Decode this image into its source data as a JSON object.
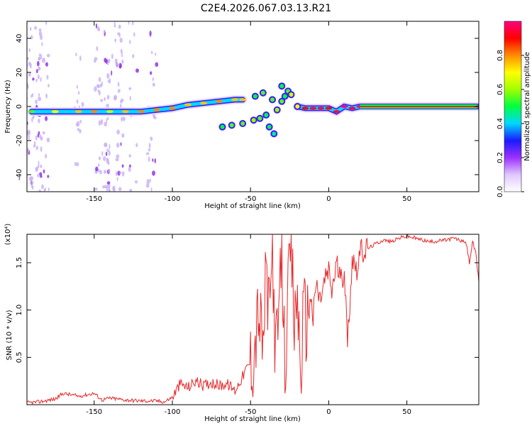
{
  "title": "C2E4.2026.067.03.13.R21",
  "colors": {
    "snr_line": "#e8282a",
    "axis": "#000000",
    "speckle": "#b8a0f0"
  },
  "chart_data": [
    {
      "type": "heatmap",
      "xlabel": "Height of straight line (km)",
      "ylabel": "Frequency (Hz)",
      "xlim": [
        -193,
        96
      ],
      "ylim": [
        -50,
        50
      ],
      "xticks": [
        -150,
        -100,
        -50,
        0,
        50
      ],
      "yticks": [
        -40,
        -20,
        0,
        20,
        40
      ],
      "colorbar": {
        "label": "Normalized spectral amplitude",
        "range": [
          0,
          1
        ],
        "ticks": [
          0.0,
          0.2,
          0.4,
          0.6,
          0.8
        ],
        "stops": [
          "#ffffff",
          "#e0c8ff",
          "#9b30ff",
          "#1a1aff",
          "#00d8ff",
          "#00ff40",
          "#a0ff00",
          "#ffff00",
          "#ff8c00",
          "#ff0000",
          "#ff007f"
        ]
      },
      "ridge": {
        "description": "main Doppler ridge (height km, frequency Hz, normalized amplitude)",
        "points": [
          [
            -190,
            -3,
            0.35
          ],
          [
            -175,
            -3,
            0.5
          ],
          [
            -160,
            -3,
            0.55
          ],
          [
            -150,
            -3,
            0.6
          ],
          [
            -140,
            -3,
            0.45
          ],
          [
            -130,
            -3,
            0.55
          ],
          [
            -120,
            -3,
            0.6
          ],
          [
            -110,
            -2,
            0.6
          ],
          [
            -100,
            -1,
            0.6
          ],
          [
            -90,
            1,
            0.55
          ],
          [
            -80,
            2,
            0.55
          ],
          [
            -70,
            3,
            0.6
          ],
          [
            -60,
            4,
            0.55
          ],
          [
            -55,
            4,
            0.55
          ]
        ],
        "scatter_points": [
          [
            -68,
            -12,
            0.5
          ],
          [
            -62,
            -11,
            0.55
          ],
          [
            -55,
            -10,
            0.55
          ],
          [
            -48,
            -8,
            0.6
          ],
          [
            -44,
            -7,
            0.55
          ],
          [
            -40,
            -5,
            0.5
          ],
          [
            -36,
            4,
            0.55
          ],
          [
            -33,
            -2,
            0.6
          ],
          [
            -30,
            3,
            0.55
          ],
          [
            -28,
            6,
            0.5
          ],
          [
            -26,
            9,
            0.55
          ],
          [
            -38,
            -12,
            0.5
          ],
          [
            -35,
            -16,
            0.45
          ],
          [
            -47,
            6,
            0.5
          ],
          [
            -42,
            8,
            0.55
          ],
          [
            -30,
            12,
            0.5
          ],
          [
            -24,
            7,
            0.65
          ],
          [
            -20,
            0,
            0.7
          ]
        ],
        "tail_points": [
          [
            -20,
            0,
            0.7
          ],
          [
            -15,
            -1,
            0.7
          ],
          [
            -10,
            -1,
            0.75
          ],
          [
            -5,
            -1,
            0.75
          ],
          [
            0,
            -1,
            0.7
          ],
          [
            5,
            -3,
            0.75
          ],
          [
            10,
            0,
            0.8
          ],
          [
            15,
            -1,
            0.75
          ],
          [
            20,
            0,
            0.9
          ],
          [
            40,
            0,
            0.95
          ],
          [
            60,
            0,
            0.95
          ],
          [
            80,
            0,
            0.95
          ],
          [
            95,
            0,
            0.95
          ]
        ]
      }
    },
    {
      "type": "line",
      "xlabel": "Height of straight line (km)",
      "ylabel": "SNR (10 * v/v)",
      "scale_note": "(x10⁴)",
      "xlim": [
        -193,
        96
      ],
      "ylim": [
        0,
        1.8
      ],
      "xticks": [
        -150,
        -100,
        -50,
        0,
        50
      ],
      "yticks": [
        0.5,
        1.0,
        1.5
      ],
      "ytick_labels": [
        "0.5",
        "1.0",
        "1.5"
      ],
      "series": [
        {
          "name": "SNR",
          "x": [
            -193,
            -185,
            -175,
            -170,
            -160,
            -150,
            -145,
            -140,
            -130,
            -120,
            -110,
            -105,
            -100,
            -95,
            -90,
            -85,
            -80,
            -75,
            -70,
            -65,
            -60,
            -55,
            -52,
            -48,
            -45,
            -42,
            -40,
            -38,
            -36,
            -34,
            -32,
            -30,
            -28,
            -26,
            -24,
            -22,
            -20,
            -18,
            -16,
            -14,
            -12,
            -10,
            -8,
            -6,
            -4,
            -2,
            0,
            2,
            5,
            8,
            10,
            12,
            15,
            18,
            20,
            25,
            30,
            35,
            40,
            45,
            50,
            55,
            60,
            65,
            70,
            75,
            80,
            85,
            88,
            90,
            92,
            94,
            96
          ],
          "y": [
            0.02,
            0.03,
            0.06,
            0.12,
            0.09,
            0.12,
            0.05,
            0.07,
            0.05,
            0.04,
            0.04,
            0.03,
            0.08,
            0.22,
            0.18,
            0.25,
            0.2,
            0.24,
            0.2,
            0.22,
            0.15,
            0.3,
            0.4,
            0.5,
            1.0,
            0.6,
            1.4,
            0.9,
            1.65,
            0.5,
            0.9,
            1.55,
            0.4,
            1.1,
            1.7,
            0.8,
            1.2,
            0.3,
            1.0,
            0.85,
            1.2,
            0.9,
            1.3,
            1.1,
            1.2,
            1.35,
            1.4,
            1.2,
            1.5,
            1.3,
            1.45,
            0.65,
            1.55,
            1.45,
            1.6,
            1.65,
            1.7,
            1.74,
            1.72,
            1.76,
            1.78,
            1.76,
            1.74,
            1.72,
            1.73,
            1.74,
            1.76,
            1.73,
            1.7,
            1.5,
            1.72,
            1.6,
            1.3
          ]
        }
      ]
    }
  ]
}
